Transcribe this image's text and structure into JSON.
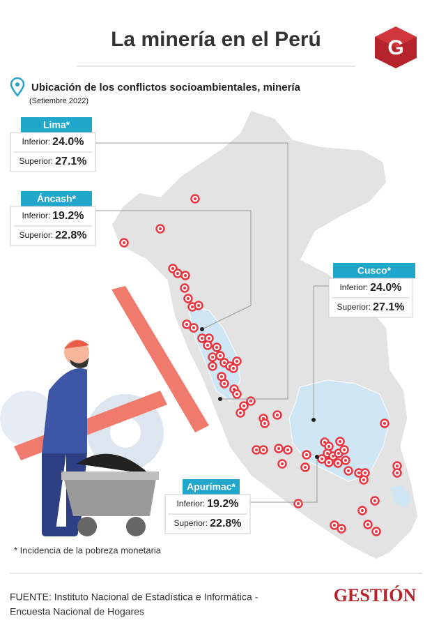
{
  "header": {
    "title": "La minería en el Perú",
    "subtitle": "Ubicación de los conflictos socioambientales, minería",
    "date": "(Setiembre 2022)"
  },
  "regions": [
    {
      "name": "Lima*",
      "inferior_label": "Inferior:",
      "inferior": "24.0%",
      "superior_label": "Superior:",
      "superior": "27.1%"
    },
    {
      "name": "Áncash*",
      "inferior_label": "Inferior:",
      "inferior": "19.2%",
      "superior_label": "Superior:",
      "superior": "22.8%"
    },
    {
      "name": "Cusco*",
      "inferior_label": "Inferior:",
      "inferior": "24.0%",
      "superior_label": "Superior:",
      "superior": "27.1%"
    },
    {
      "name": "Apurímac*",
      "inferior_label": "Inferior:",
      "inferior": "19.2%",
      "superior_label": "Superior:",
      "superior": "22.8%"
    }
  ],
  "footnote": "* Incidencia de la pobreza monetaria",
  "source": {
    "line1": "FUENTE:  Instituto Nacional de Estadística e Informática -",
    "line2": "Encuesta Nacional de Hogares"
  },
  "brand": "GESTIÓN",
  "logo": "G"
}
